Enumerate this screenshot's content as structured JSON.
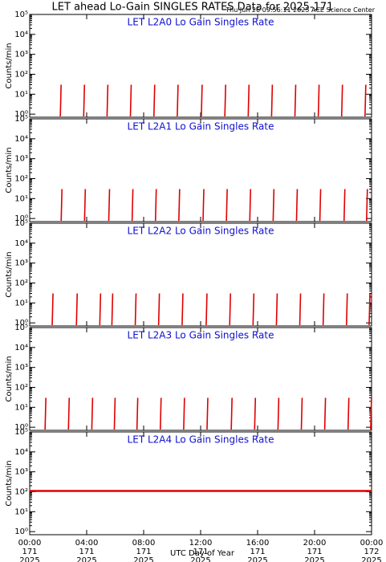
{
  "title": "LET ahead Lo-Gain SINGLES RATES Data for 2025-171",
  "subtitle": "Thu Jun 26 09:56:11 2025 ACE Science Center",
  "x_label": "UTC Day of Year",
  "xtick_days": [
    "171",
    "171",
    "171",
    "171",
    "171",
    "171",
    "172"
  ],
  "xtick_years": [
    "2025",
    "2025",
    "2025",
    "2025",
    "2025",
    "2025",
    "2025"
  ],
  "chart_data": [
    {
      "type": "spike",
      "title": "LET L2A0 Lo Gain Singles Rate",
      "y_label": "Counts/min",
      "color": "#e00000",
      "log_y": true,
      "xlim": [
        0,
        24
      ],
      "xticks": [
        {
          "value": 0,
          "label": "00:00"
        },
        {
          "value": 4,
          "label": "04:00"
        },
        {
          "value": 8,
          "label": "08:00"
        },
        {
          "value": 12,
          "label": "12:00"
        },
        {
          "value": 16,
          "label": "16:00"
        },
        {
          "value": 20,
          "label": "20:00"
        },
        {
          "value": 24,
          "label": "00:00"
        }
      ],
      "ylim": [
        0.7,
        100000
      ],
      "yticks": [
        {
          "value": 1,
          "label": "10⁰"
        },
        {
          "value": 10,
          "label": "10¹"
        },
        {
          "value": 100,
          "label": "10²"
        },
        {
          "value": 1000,
          "label": "10³"
        },
        {
          "value": 10000,
          "label": "10⁴"
        },
        {
          "value": 100000,
          "label": "10⁵"
        }
      ],
      "x": [
        2.15,
        3.79,
        5.43,
        7.07,
        8.72,
        10.36,
        12.05,
        13.7,
        15.34,
        16.98,
        18.62,
        20.26,
        21.9,
        23.54
      ],
      "values": [
        30,
        30,
        30,
        30,
        30,
        30,
        30,
        30,
        30,
        30,
        30,
        30,
        30,
        30
      ]
    },
    {
      "type": "spike",
      "title": "LET L2A1 Lo Gain Singles Rate",
      "y_label": "Counts/min",
      "color": "#e00000",
      "log_y": true,
      "xlim": [
        0,
        24
      ],
      "xticks": [
        {
          "value": 0,
          "label": "00:00"
        },
        {
          "value": 4,
          "label": "04:00"
        },
        {
          "value": 8,
          "label": "08:00"
        },
        {
          "value": 12,
          "label": "12:00"
        },
        {
          "value": 16,
          "label": "16:00"
        },
        {
          "value": 20,
          "label": "20:00"
        },
        {
          "value": 24,
          "label": "00:00"
        }
      ],
      "ylim": [
        0.7,
        100000
      ],
      "yticks": [
        {
          "value": 1,
          "label": "10⁰"
        },
        {
          "value": 10,
          "label": "10¹"
        },
        {
          "value": 100,
          "label": "10²"
        },
        {
          "value": 1000,
          "label": "10³"
        },
        {
          "value": 10000,
          "label": "10⁴"
        },
        {
          "value": 100000,
          "label": "10⁵"
        }
      ],
      "x": [
        2.21,
        3.85,
        5.55,
        7.19,
        8.83,
        10.47,
        12.17,
        13.81,
        15.45,
        17.09,
        18.73,
        20.37,
        22.07,
        23.65
      ],
      "values": [
        30,
        30,
        30,
        30,
        30,
        30,
        30,
        30,
        30,
        30,
        30,
        30,
        30,
        30
      ]
    },
    {
      "type": "spike",
      "title": "LET L2A2 Lo Gain Singles Rate",
      "y_label": "Counts/min",
      "color": "#e00000",
      "log_y": true,
      "xlim": [
        0,
        24
      ],
      "xticks": [
        {
          "value": 0,
          "label": "00:00"
        },
        {
          "value": 4,
          "label": "04:00"
        },
        {
          "value": 8,
          "label": "08:00"
        },
        {
          "value": 12,
          "label": "12:00"
        },
        {
          "value": 16,
          "label": "16:00"
        },
        {
          "value": 20,
          "label": "20:00"
        },
        {
          "value": 24,
          "label": "00:00"
        }
      ],
      "ylim": [
        0.7,
        100000
      ],
      "yticks": [
        {
          "value": 1,
          "label": "10⁰"
        },
        {
          "value": 10,
          "label": "10¹"
        },
        {
          "value": 100,
          "label": "10²"
        },
        {
          "value": 1000,
          "label": "10³"
        },
        {
          "value": 10000,
          "label": "10⁴"
        },
        {
          "value": 100000,
          "label": "10⁵"
        }
      ],
      "x": [
        1.58,
        3.28,
        4.92,
        5.77,
        7.41,
        9.05,
        10.7,
        12.39,
        14.04,
        15.68,
        17.32,
        18.96,
        20.6,
        22.24,
        23.83
      ],
      "values": [
        30,
        30,
        30,
        30,
        30,
        30,
        30,
        30,
        30,
        30,
        30,
        30,
        30,
        30,
        30
      ]
    },
    {
      "type": "spike",
      "title": "LET L2A3 Lo Gain Singles Rate",
      "y_label": "Counts/min",
      "color": "#e00000",
      "log_y": true,
      "xlim": [
        0,
        24
      ],
      "xticks": [
        {
          "value": 0,
          "label": "00:00"
        },
        {
          "value": 4,
          "label": "04:00"
        },
        {
          "value": 8,
          "label": "08:00"
        },
        {
          "value": 12,
          "label": "12:00"
        },
        {
          "value": 16,
          "label": "16:00"
        },
        {
          "value": 20,
          "label": "20:00"
        },
        {
          "value": 24,
          "label": "00:00"
        }
      ],
      "ylim": [
        0.7,
        100000
      ],
      "yticks": [
        {
          "value": 1,
          "label": "10⁰"
        },
        {
          "value": 10,
          "label": "10¹"
        },
        {
          "value": 100,
          "label": "10²"
        },
        {
          "value": 1000,
          "label": "10³"
        },
        {
          "value": 10000,
          "label": "10⁴"
        },
        {
          "value": 100000,
          "label": "10⁵"
        }
      ],
      "x": [
        1.08,
        2.72,
        4.36,
        5.94,
        7.53,
        9.17,
        10.81,
        12.45,
        14.15,
        15.79,
        17.43,
        19.07,
        20.71,
        22.35,
        23.94
      ],
      "values": [
        30,
        30,
        30,
        30,
        30,
        30,
        30,
        30,
        30,
        30,
        30,
        30,
        30,
        30,
        30
      ]
    },
    {
      "type": "line",
      "title": "LET L2A4 Lo Gain Singles Rate",
      "y_label": "Counts/min",
      "color": "#e00000",
      "log_y": true,
      "xlim": [
        0,
        24
      ],
      "xticks": [
        {
          "value": 0,
          "label": "00:00"
        },
        {
          "value": 4,
          "label": "04:00"
        },
        {
          "value": 8,
          "label": "08:00"
        },
        {
          "value": 12,
          "label": "12:00"
        },
        {
          "value": 16,
          "label": "16:00"
        },
        {
          "value": 20,
          "label": "20:00"
        },
        {
          "value": 24,
          "label": "00:00"
        }
      ],
      "ylim": [
        0.7,
        100000
      ],
      "yticks": [
        {
          "value": 1,
          "label": "10⁰"
        },
        {
          "value": 10,
          "label": "10¹"
        },
        {
          "value": 100,
          "label": "10²"
        },
        {
          "value": 1000,
          "label": "10³"
        },
        {
          "value": 10000,
          "label": "10⁴"
        },
        {
          "value": 100000,
          "label": "10⁵"
        }
      ],
      "x": [
        0,
        4,
        8,
        12,
        16,
        20,
        24
      ],
      "values": [
        110,
        110,
        110,
        110,
        110,
        110,
        110
      ]
    }
  ]
}
